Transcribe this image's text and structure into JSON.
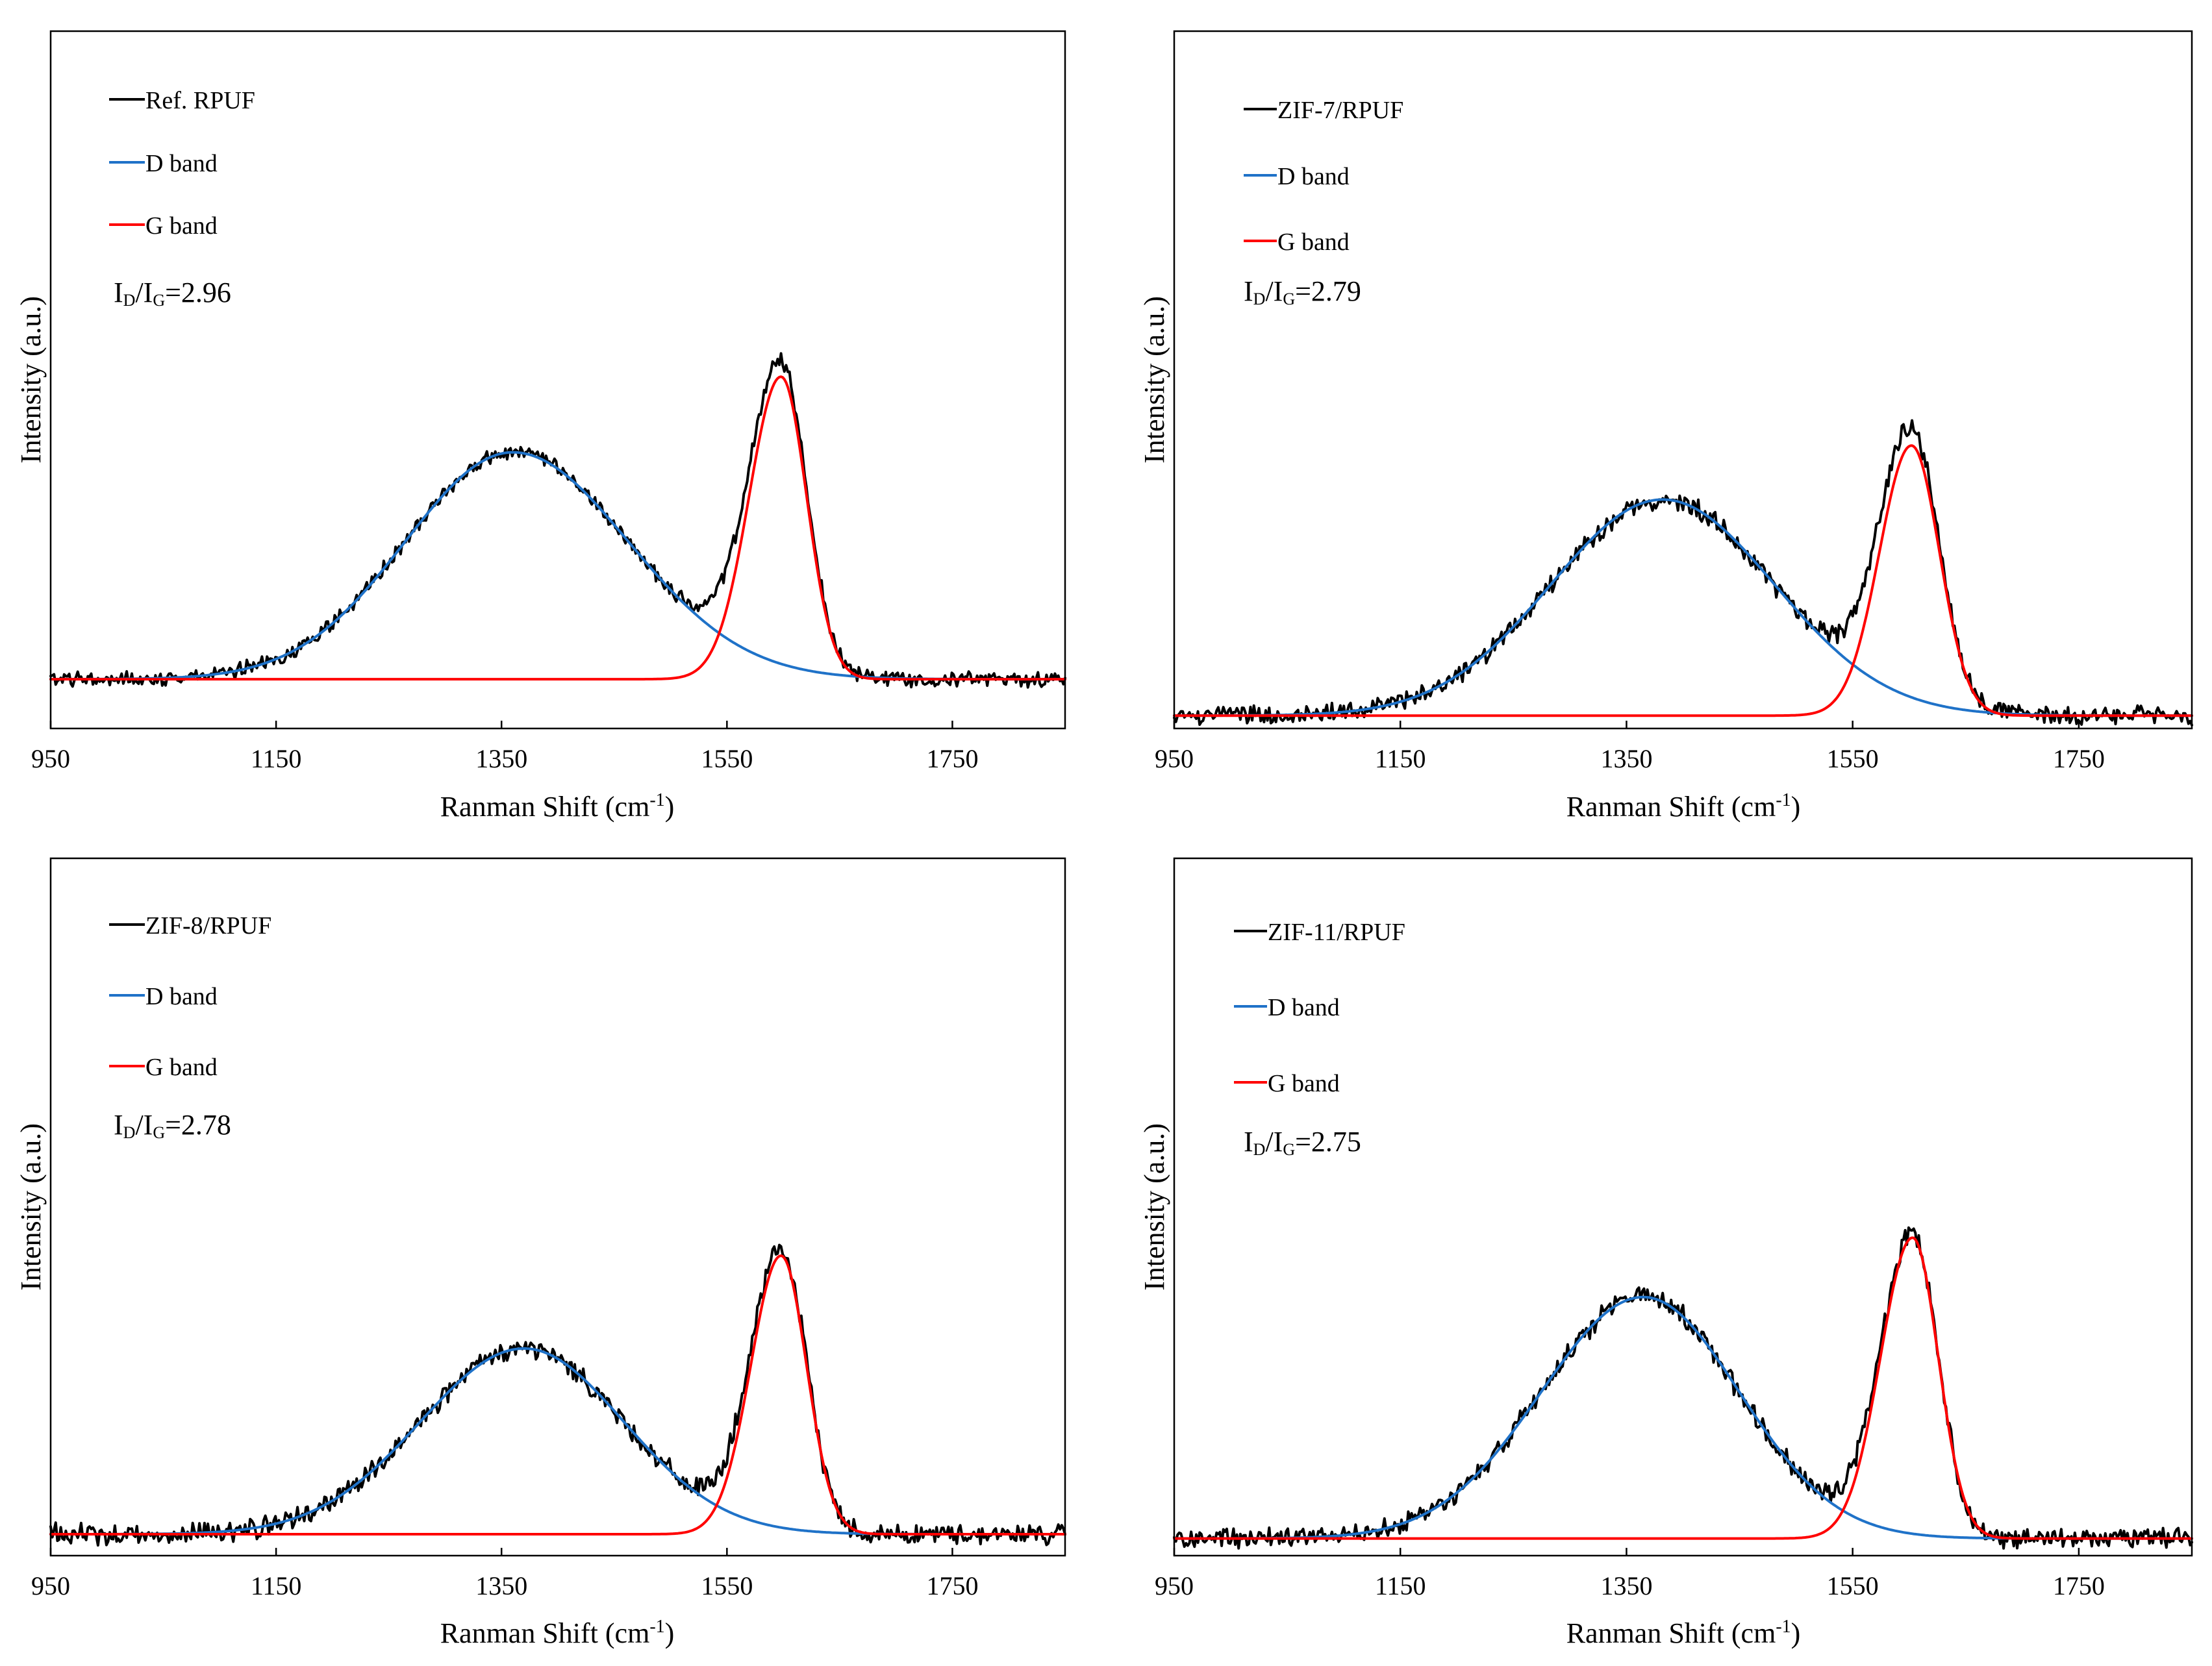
{
  "chart_data": [
    {
      "type": "line",
      "xlabel": "Ranman Shift (cm-1)",
      "xlabel_main": "Ranman Shift (cm",
      "xlabel_sup": "-1",
      "xlabel_close": ")",
      "ylabel": "Intensity (a.u.)",
      "xlim": [
        950,
        1850
      ],
      "ylim": [
        0,
        1
      ],
      "xticks": [
        950,
        1150,
        1350,
        1550,
        1750
      ],
      "xtick_labels": [
        "950",
        "1150",
        "1350",
        "1550",
        "1750"
      ],
      "grid": false,
      "legend_position": "top-left",
      "annotation": {
        "prefix": "I",
        "sub1": "D",
        "slash": "/I",
        "sub2": "G",
        "value": "=2.96"
      },
      "series": [
        {
          "name": "Ref. RPUF",
          "color": "#000000",
          "role": "measured"
        },
        {
          "name": "D band",
          "color": "#1f72c8",
          "role": "fit",
          "center": 1360,
          "height": 0.84,
          "width_left": 135,
          "width_right": 145
        },
        {
          "name": "G band",
          "color": "#ff0000",
          "role": "fit",
          "center": 1598,
          "height": 1.12,
          "width_left": 40,
          "width_right": 32
        }
      ],
      "baseline": 0.23,
      "measured_peak": 1.18
    },
    {
      "type": "line",
      "xlabel": "Ranman Shift (cm-1)",
      "xlabel_main": "Ranman Shift (cm",
      "xlabel_sup": "-1",
      "xlabel_close": ")",
      "ylabel": "Intensity (a.u.)",
      "xlim": [
        950,
        1850
      ],
      "ylim": [
        0,
        1
      ],
      "xticks": [
        950,
        1150,
        1350,
        1550,
        1750
      ],
      "xtick_labels": [
        "950",
        "1150",
        "1350",
        "1550",
        "1750"
      ],
      "grid": false,
      "legend_position": "top-left",
      "annotation": {
        "prefix": "I",
        "sub1": "D",
        "slash": "/I",
        "sub2": "G",
        "value": "=2.79"
      },
      "series": [
        {
          "name": "ZIF-7/RPUF",
          "color": "#000000",
          "role": "measured"
        },
        {
          "name": "D band",
          "color": "#1f72c8",
          "role": "fit",
          "center": 1382,
          "height": 0.64,
          "width_left": 140,
          "width_right": 140
        },
        {
          "name": "G band",
          "color": "#ff0000",
          "role": "fit",
          "center": 1602,
          "height": 0.8,
          "width_left": 40,
          "width_right": 35
        }
      ],
      "baseline": 0.06,
      "measured_peak": 0.99
    },
    {
      "type": "line",
      "xlabel": "Ranman Shift (cm-1)",
      "xlabel_main": "Ranman Shift (cm",
      "xlabel_sup": "-1",
      "xlabel_close": ")",
      "ylabel": "Intensity (a.u.)",
      "xlim": [
        950,
        1850
      ],
      "ylim": [
        0,
        1
      ],
      "xticks": [
        950,
        1150,
        1350,
        1550,
        1750
      ],
      "xtick_labels": [
        "950",
        "1150",
        "1350",
        "1550",
        "1750"
      ],
      "grid": false,
      "legend_position": "top-left",
      "annotation": {
        "prefix": "I",
        "sub1": "D",
        "slash": "/I",
        "sub2": "G",
        "value": "=2.78"
      },
      "series": [
        {
          "name": "ZIF-8/RPUF",
          "color": "#000000",
          "role": "measured"
        },
        {
          "name": "D band",
          "color": "#1f72c8",
          "role": "fit",
          "center": 1370,
          "height": 0.5,
          "width_left": 130,
          "width_right": 125
        },
        {
          "name": "G band",
          "color": "#ff0000",
          "role": "fit",
          "center": 1598,
          "height": 0.75,
          "width_left": 38,
          "width_right": 32
        }
      ],
      "baseline": 0.1,
      "measured_peak": 0.94
    },
    {
      "type": "line",
      "xlabel": "Ranman Shift (cm-1)",
      "xlabel_main": "Ranman Shift (cm",
      "xlabel_sup": "-1",
      "xlabel_close": ")",
      "ylabel": "Intensity (a.u.)",
      "xlim": [
        950,
        1850
      ],
      "ylim": [
        0,
        1
      ],
      "xticks": [
        950,
        1150,
        1350,
        1550,
        1750
      ],
      "xtick_labels": [
        "950",
        "1150",
        "1350",
        "1550",
        "1750"
      ],
      "grid": false,
      "legend_position": "top-left",
      "annotation": {
        "prefix": "I",
        "sub1": "D",
        "slash": "/I",
        "sub2": "G",
        "value": "=2.75"
      },
      "series": [
        {
          "name": "ZIF-11/RPUF",
          "color": "#000000",
          "role": "measured"
        },
        {
          "name": "D band",
          "color": "#1f72c8",
          "role": "fit",
          "center": 1365,
          "height": 0.65,
          "width_left": 128,
          "width_right": 120
        },
        {
          "name": "G band",
          "color": "#ff0000",
          "role": "fit",
          "center": 1603,
          "height": 0.81,
          "width_left": 40,
          "width_right": 32
        }
      ],
      "baseline": 0.08,
      "measured_peak": 0.96
    }
  ]
}
